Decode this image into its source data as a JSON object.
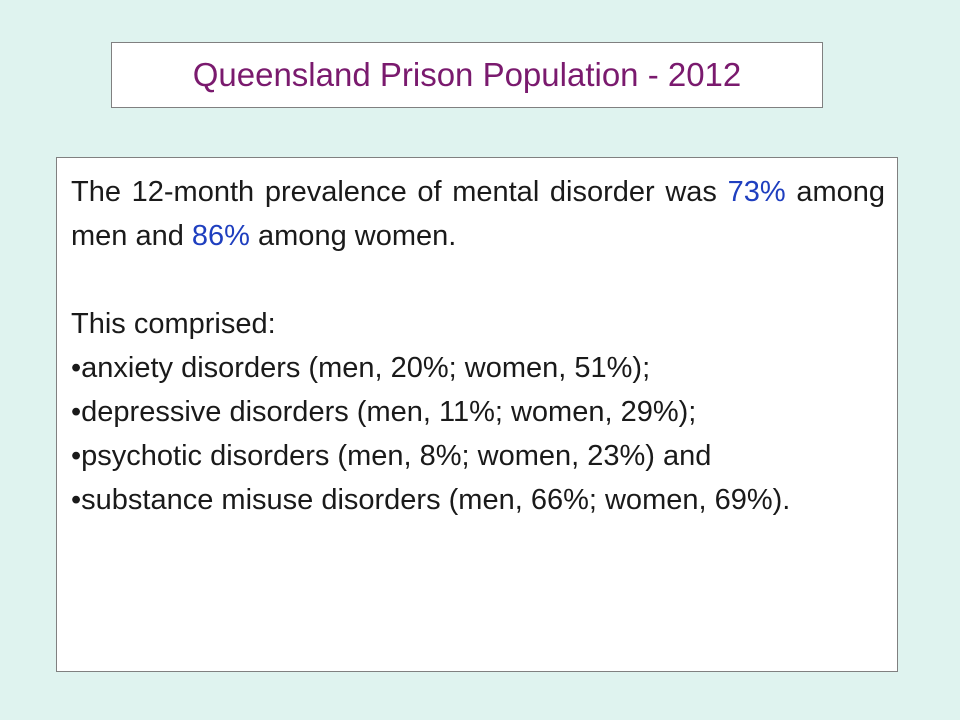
{
  "title": "Queensland Prison Population - 2012",
  "intro": {
    "part1": "The 12-month prevalence of mental disorder was ",
    "men_pct": "73%",
    "part2": " among men and ",
    "women_pct": "86%",
    "part3": " among women."
  },
  "comprised_label": "This comprised:",
  "bullets": [
    "•anxiety disorders (men, 20%; women, 51%);",
    "•depressive disorders (men, 11%; women, 29%);",
    "•psychotic disorders (men, 8%; women, 23%) and",
    "•substance misuse disorders (men, 66%; women, 69%)."
  ],
  "colors": {
    "background": "#dff3ef",
    "title": "#7a1a6e",
    "highlight": "#1f3fbf"
  }
}
